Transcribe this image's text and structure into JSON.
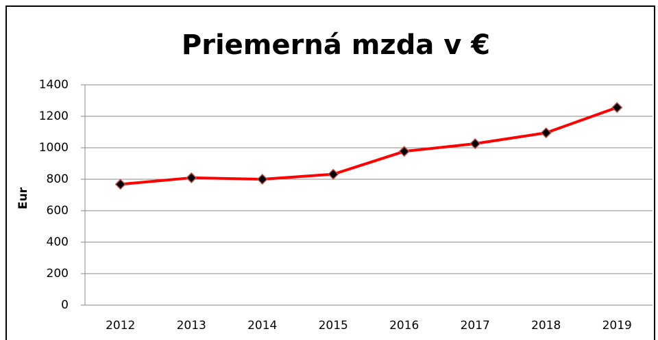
{
  "chart_data": {
    "type": "line",
    "title": "Priemerná mzda v €",
    "y_label": "Eur",
    "categories": [
      "2012",
      "2013",
      "2014",
      "2015",
      "2016",
      "2017",
      "2018",
      "2019"
    ],
    "series": [
      {
        "name": "Priemerná mzda",
        "color": "#ff0000",
        "values": [
          768,
          809,
          800,
          832,
          977,
          1026,
          1095,
          1256
        ]
      }
    ],
    "ylim": [
      0,
      1400
    ],
    "yticks": [
      0,
      200,
      400,
      600,
      800,
      1000,
      1200,
      1400
    ],
    "grid": true
  }
}
